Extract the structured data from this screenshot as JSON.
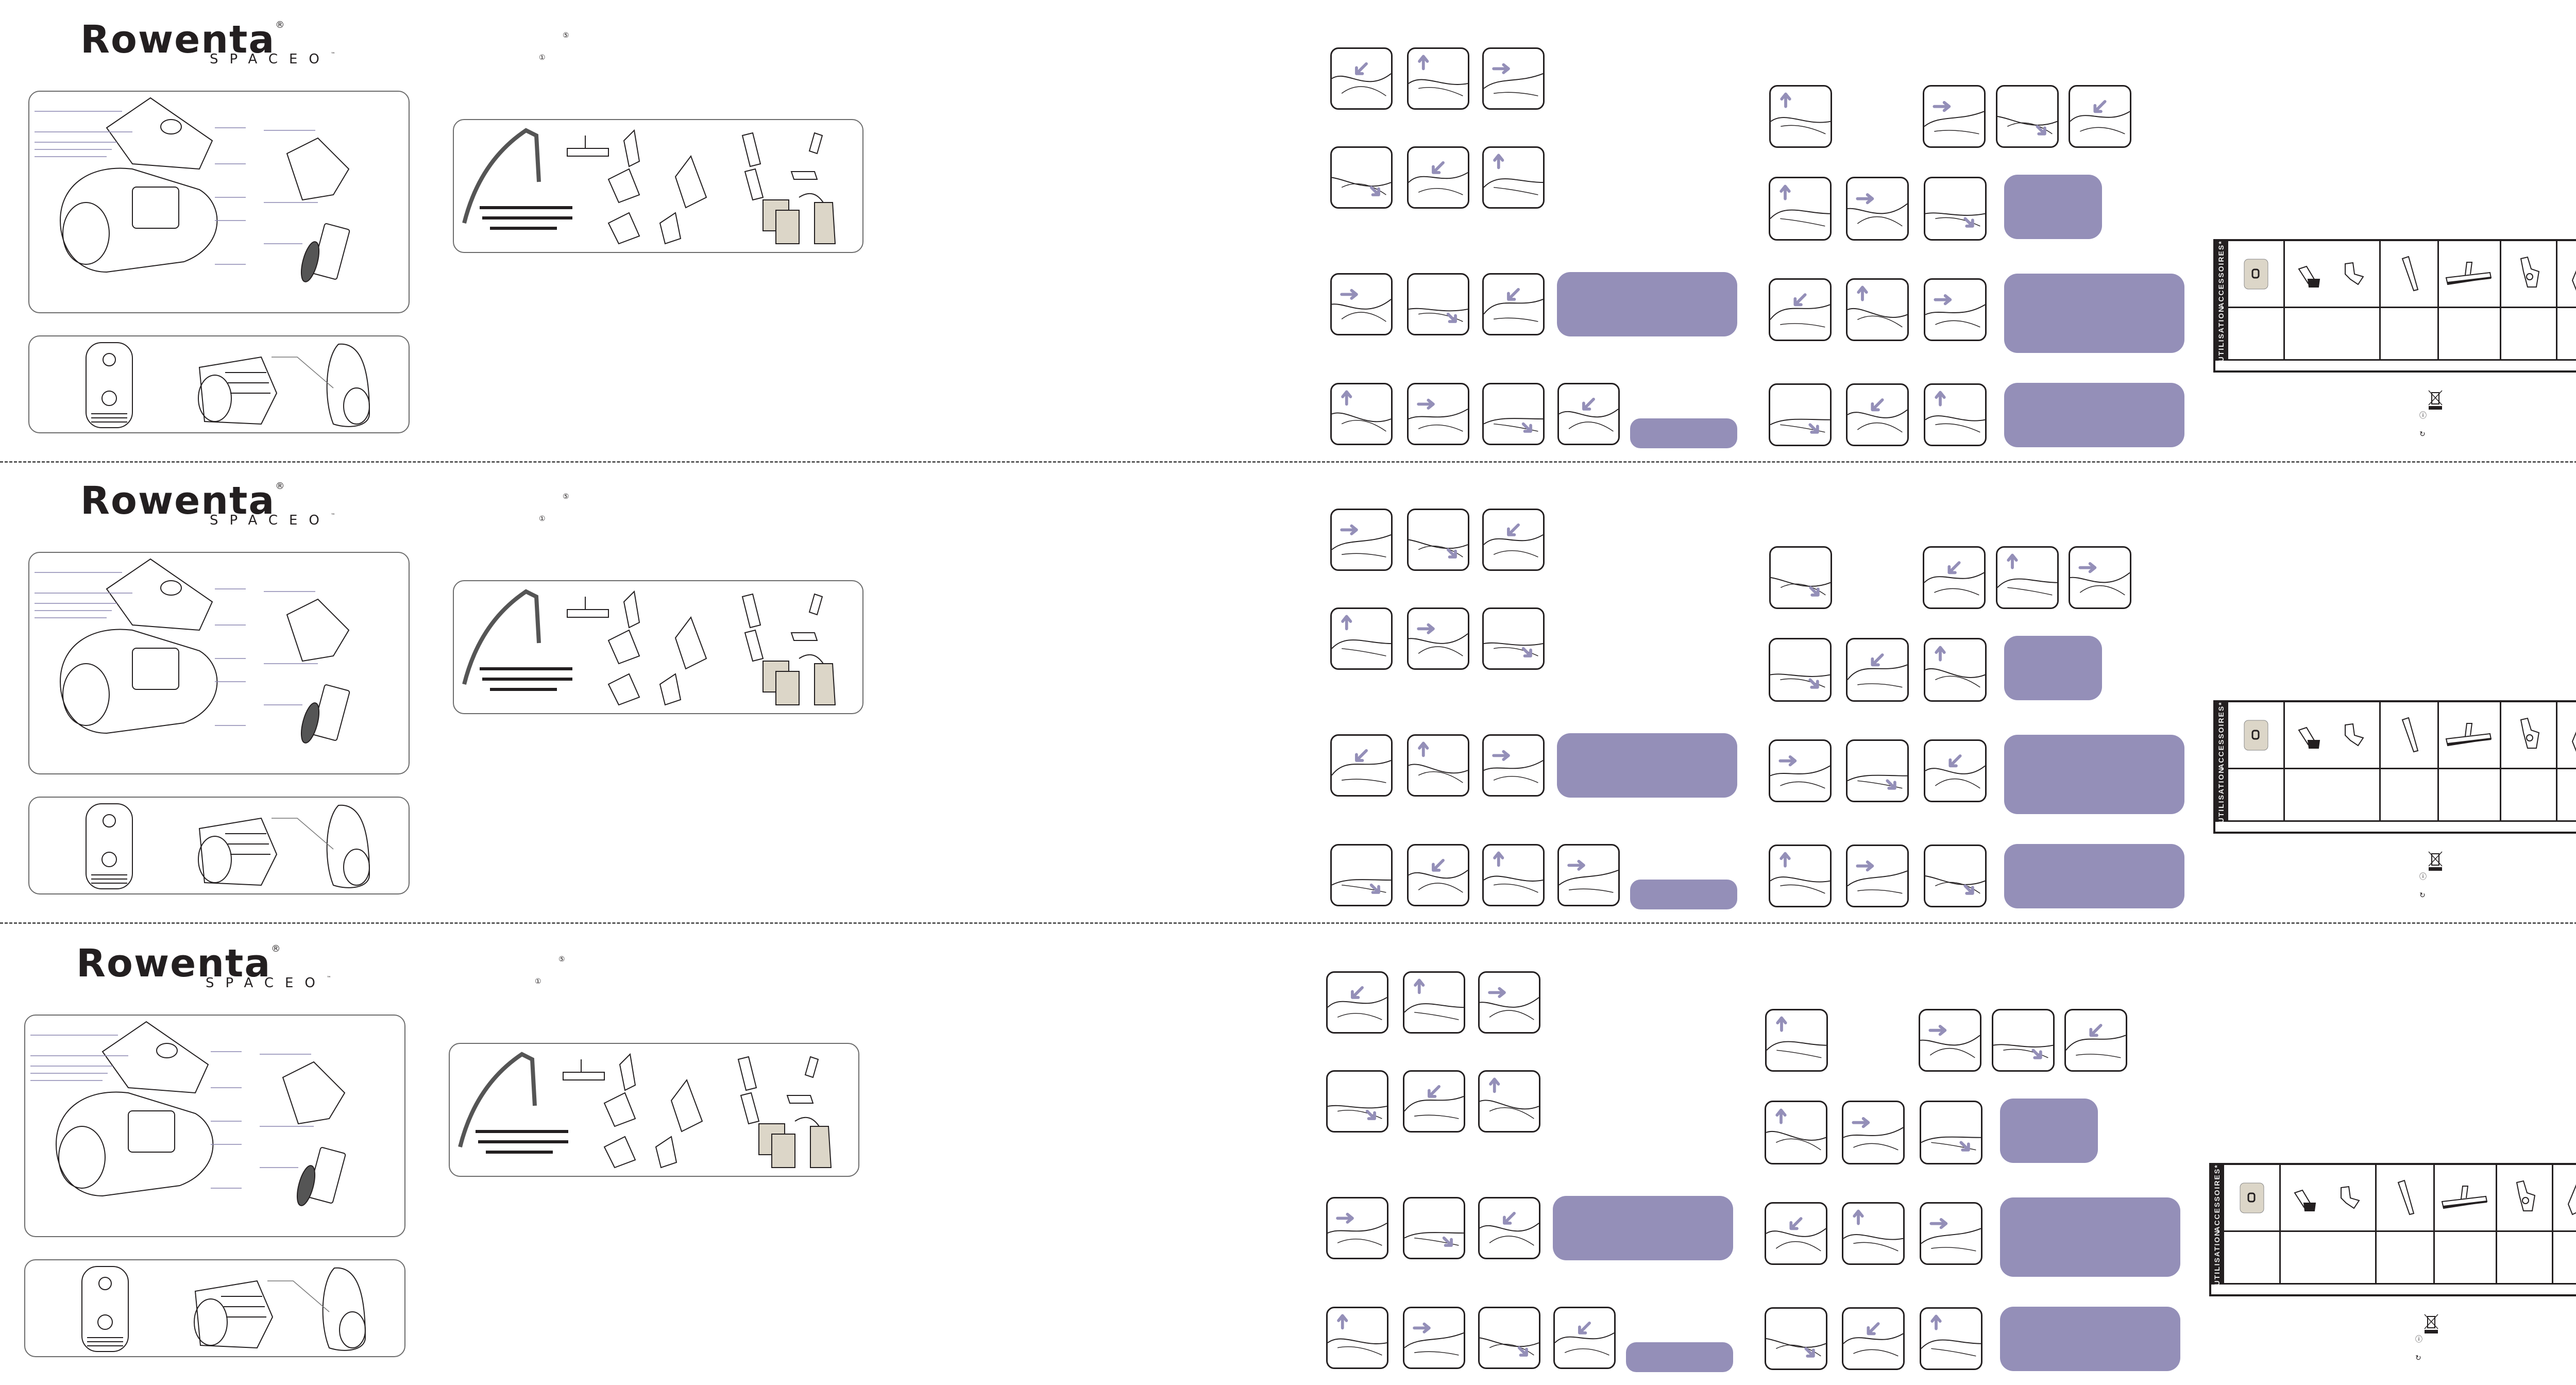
{
  "brand": {
    "name": "Rowenta",
    "registered": "®",
    "model": "SPACEO",
    "trademark": "™"
  },
  "header_symbols": [
    "⑤",
    "①"
  ],
  "table": {
    "accessories_label": "ACCESSOIRES*",
    "usage_label": "UTILISATION"
  },
  "footer_symbols": {
    "info": "ⓘ",
    "recycle": "↻"
  },
  "colors": {
    "accent": "#948fb8",
    "bag": "#dcd6c8",
    "ink": "#231f20",
    "frame": "#6b6b6b"
  },
  "icons": [
    "vacuum-exploded-icon",
    "vacuum-views-icon",
    "hose-icon",
    "floor-nozzle-icon",
    "crevice-tool-icon",
    "brush-icon",
    "dust-bag-icon",
    "step-illustration-icon",
    "arrow-icon",
    "weee-bin-icon",
    "info-icon"
  ]
}
